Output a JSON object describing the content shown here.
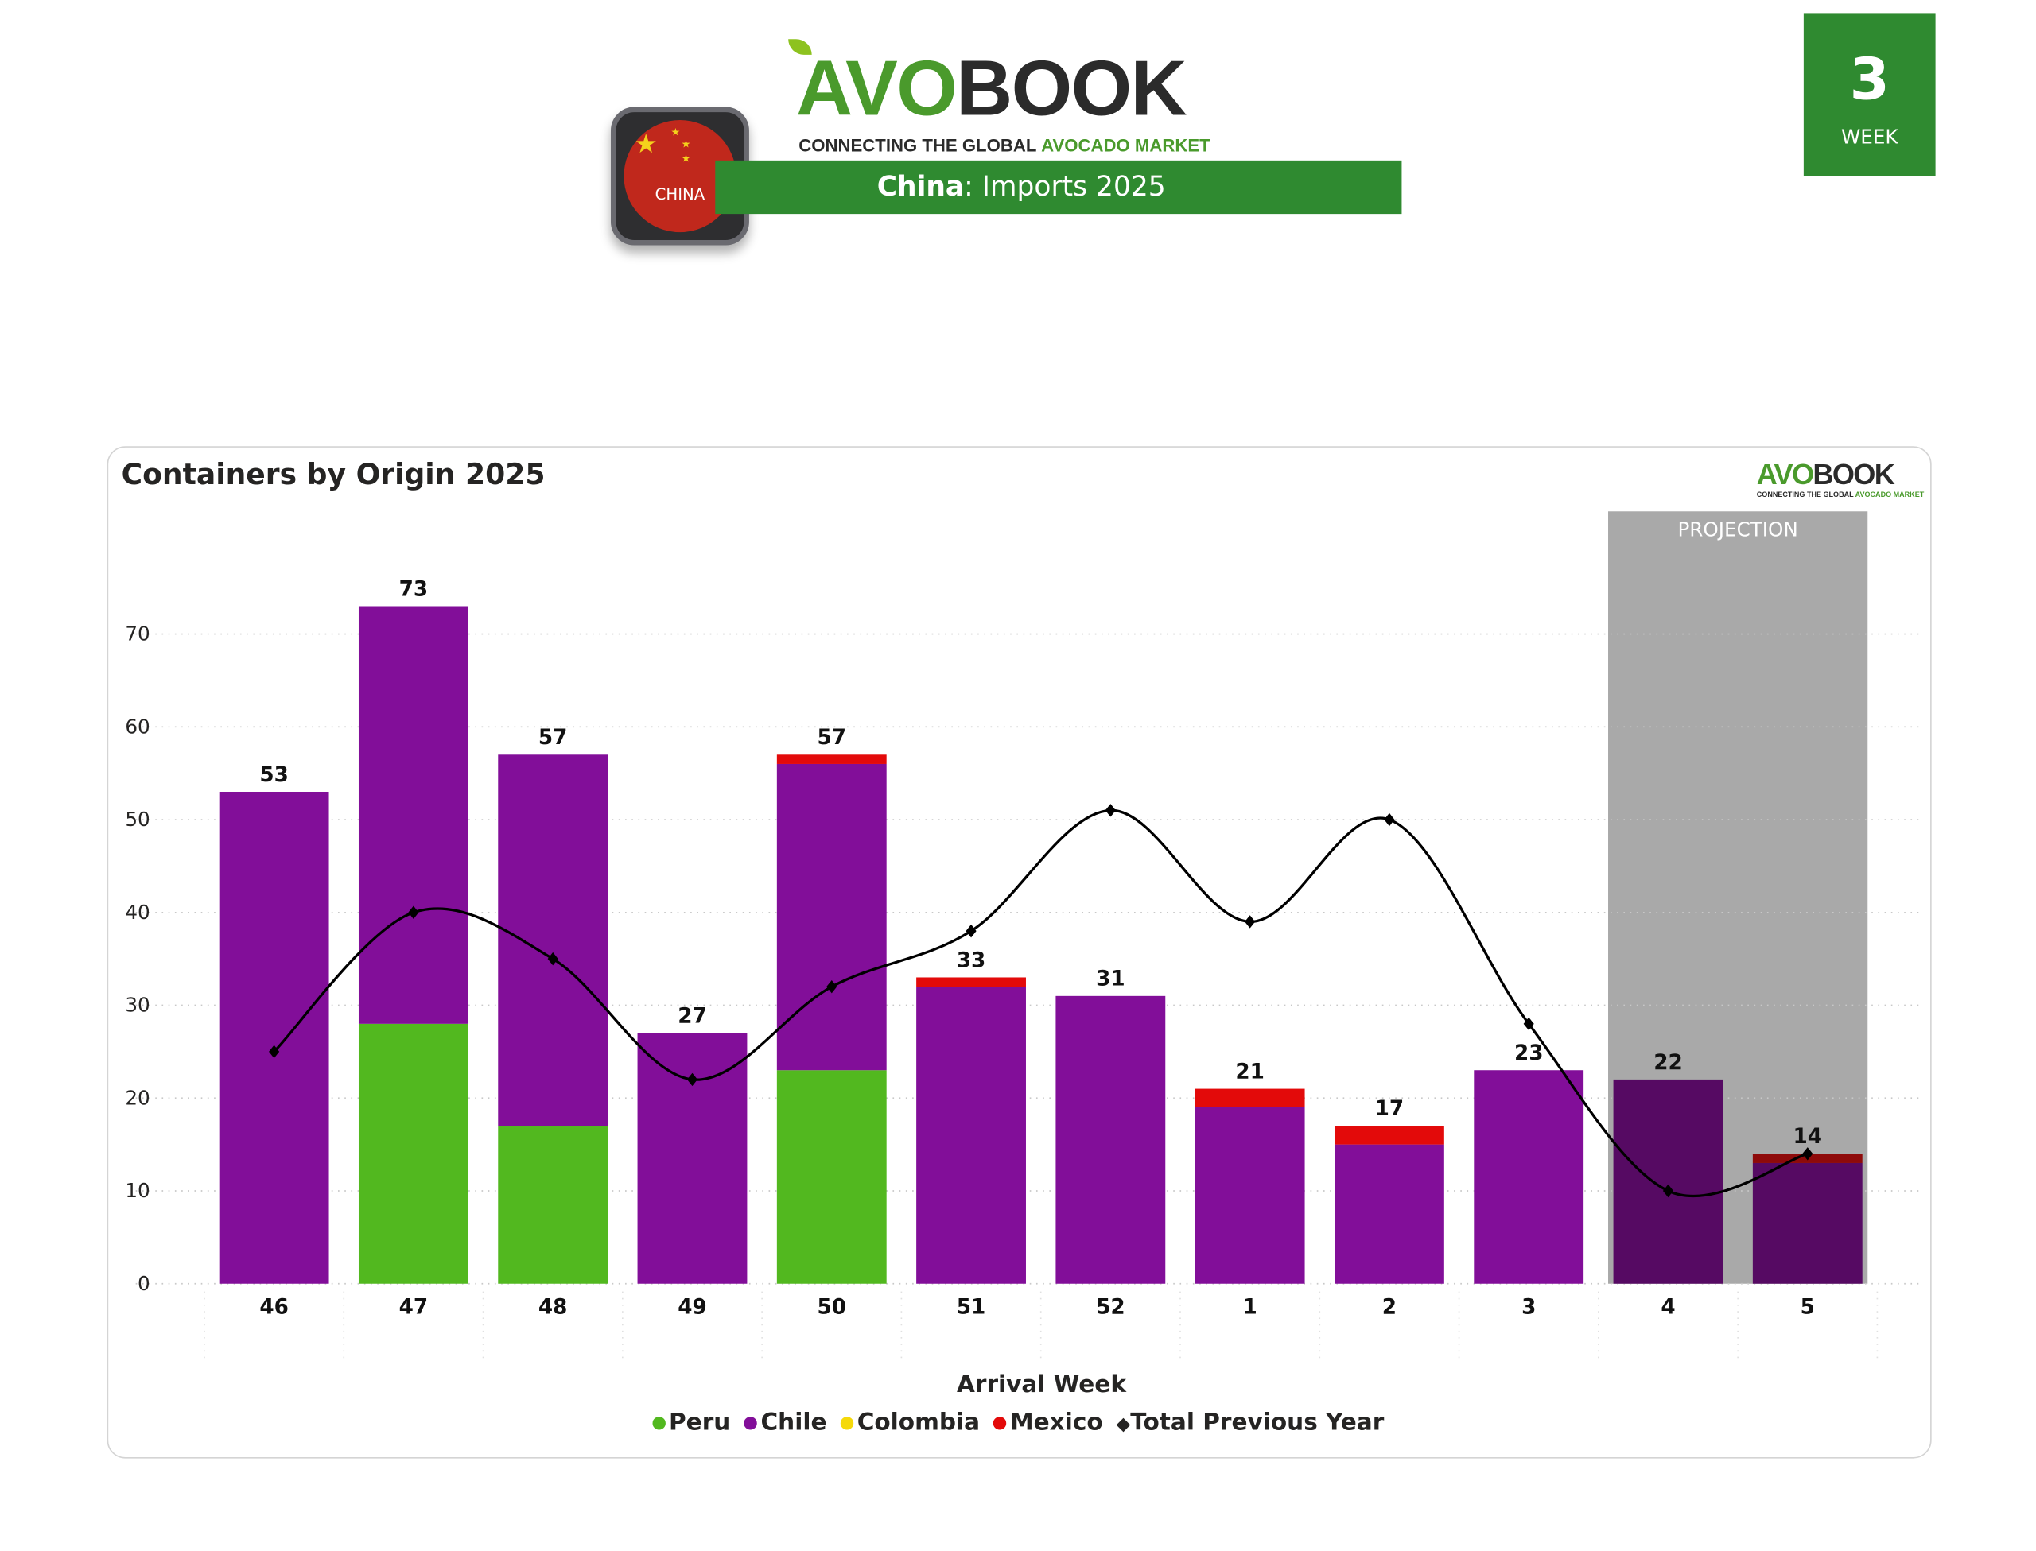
{
  "header": {
    "logo_text_a": "AVO",
    "logo_text_b": "BOOK",
    "tagline_a": "CONNECTING THE GLOBAL",
    "tagline_b": "AVOCADO MARKET",
    "country_badge": "CHINA",
    "banner_country": "China",
    "banner_rest": ": Imports 2025",
    "week_number": "3",
    "week_label": "WEEK"
  },
  "colors": {
    "peru": "#52b81f",
    "chile": "#820e99",
    "colombia": "#f5d90a",
    "mexico": "#e30a0a",
    "previous": "#000000",
    "projection_band": "#a9a9a9",
    "chile_projection": "#560a63",
    "mexico_projection": "#8e0a0a",
    "brand_green": "#2f8a30"
  },
  "chart_data": {
    "type": "bar",
    "title": "Containers by Origin 2025",
    "xlabel": "Arrival Week",
    "ylabel": "",
    "ylim": [
      0,
      80
    ],
    "yticks": [
      0,
      10,
      20,
      30,
      40,
      50,
      60,
      70
    ],
    "grid": true,
    "categories": [
      "46",
      "47",
      "48",
      "49",
      "50",
      "51",
      "52",
      "1",
      "2",
      "3",
      "4",
      "5"
    ],
    "series": [
      {
        "name": "Peru",
        "type": "bar",
        "values": [
          0,
          28,
          17,
          0,
          23,
          0,
          0,
          0,
          0,
          0,
          0,
          0
        ]
      },
      {
        "name": "Chile",
        "type": "bar",
        "values": [
          53,
          45,
          40,
          27,
          33,
          32,
          31,
          19,
          15,
          23,
          22,
          13
        ]
      },
      {
        "name": "Colombia",
        "type": "bar",
        "values": [
          0,
          0,
          0,
          0,
          0,
          0,
          0,
          0,
          0,
          0,
          0,
          0
        ]
      },
      {
        "name": "Mexico",
        "type": "bar",
        "values": [
          0,
          0,
          0,
          0,
          1,
          1,
          0,
          2,
          2,
          0,
          0,
          1
        ]
      },
      {
        "name": "Total Previous Year",
        "type": "line",
        "values": [
          25,
          40,
          35,
          22,
          32,
          38,
          51,
          39,
          50,
          28,
          10,
          14
        ]
      }
    ],
    "totals": [
      53,
      73,
      57,
      27,
      57,
      33,
      31,
      21,
      17,
      23,
      22,
      14
    ],
    "projection": {
      "label": "PROJECTION",
      "categories": [
        "4",
        "5"
      ]
    },
    "legend": [
      "Peru",
      "Chile",
      "Colombia",
      "Mexico",
      "Total Previous Year"
    ],
    "legend_position": "bottom"
  }
}
